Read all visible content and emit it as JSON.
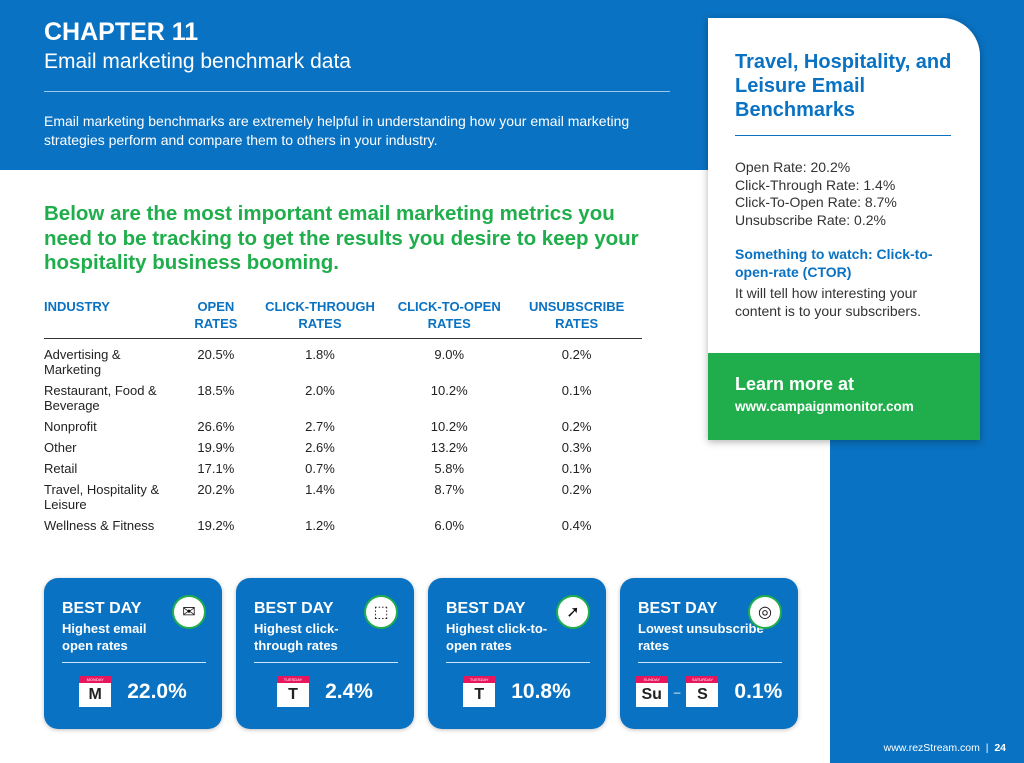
{
  "header": {
    "chapter": "CHAPTER 11",
    "title": "Email marketing benchmark data",
    "intro": "Email marketing benchmarks are extremely helpful in understanding how your email marketing strategies perform and compare them to others in your industry."
  },
  "lead": "Below are the most important email marketing metrics you need to be tracking to get the results you desire to keep your hospitality business booming.",
  "table": {
    "headers": [
      "INDUSTRY",
      "OPEN RATES",
      "CLICK-THROUGH RATES",
      "CLICK-TO-OPEN RATES",
      "UNSUBSCRIBE RATES"
    ],
    "rows": [
      [
        "Advertising & Marketing",
        "20.5%",
        "1.8%",
        "9.0%",
        "0.2%"
      ],
      [
        "Restaurant, Food & Beverage",
        "18.5%",
        "2.0%",
        "10.2%",
        "0.1%"
      ],
      [
        "Nonprofit",
        "26.6%",
        "2.7%",
        "10.2%",
        "0.2%"
      ],
      [
        "Other",
        "19.9%",
        "2.6%",
        "13.2%",
        "0.3%"
      ],
      [
        "Retail",
        "17.1%",
        "0.7%",
        "5.8%",
        "0.1%"
      ],
      [
        "Travel, Hospitality & Leisure",
        "20.2%",
        "1.4%",
        "8.7%",
        "0.2%"
      ],
      [
        "Wellness & Fitness",
        "19.2%",
        "1.2%",
        "6.0%",
        "0.4%"
      ]
    ]
  },
  "card": {
    "title": "Travel, Hospitality, and Leisure Email Benchmarks",
    "stats": [
      "Open Rate: 20.2%",
      "Click-Through Rate: 1.4%",
      "Click-To-Open Rate: 8.7%",
      "Unsubscribe Rate: 0.2%"
    ],
    "watch_title": "Something to watch: Click-to-open-rate (CTOR)",
    "watch_text": "It will tell how interesting your content is to your subscribers.",
    "learn": "Learn more at",
    "url": "www.campaignmonitor.com"
  },
  "boxes": [
    {
      "title": "BEST DAY",
      "desc": "Highest email open rates",
      "icon": "envelope-open-icon",
      "days": [
        {
          "label": "MONDAY",
          "abbr": "M"
        }
      ],
      "value": "22.0%"
    },
    {
      "title": "BEST DAY",
      "desc": "Highest click-through rates",
      "icon": "click-cursor-icon",
      "days": [
        {
          "label": "TUESDAY",
          "abbr": "T"
        }
      ],
      "value": "2.4%"
    },
    {
      "title": "BEST DAY",
      "desc": "Highest click-to-open rates",
      "icon": "pointer-click-icon",
      "days": [
        {
          "label": "TUESDAY",
          "abbr": "T"
        }
      ],
      "value": "10.8%"
    },
    {
      "title": "BEST DAY",
      "desc": "Lowest unsubscribe rates",
      "icon": "ring-icon",
      "days": [
        {
          "label": "SUNDAY",
          "abbr": "Su"
        },
        {
          "label": "SATURDAY",
          "abbr": "S"
        }
      ],
      "value": "0.1%"
    }
  ],
  "footer": {
    "site": "www.rezStream.com",
    "page": "24"
  },
  "colors": {
    "blue": "#0a72c2",
    "green": "#1fae4b",
    "calendar": "#e8175d"
  }
}
